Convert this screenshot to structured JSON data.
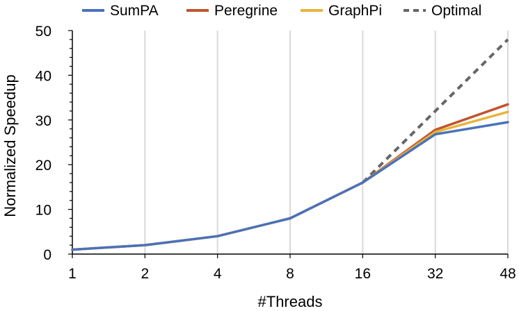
{
  "chart_data": {
    "type": "line",
    "xlabel": "#Threads",
    "ylabel": "Normalized Speedup",
    "categories": [
      "1",
      "2",
      "4",
      "8",
      "16",
      "32",
      "48"
    ],
    "ylim": [
      0,
      50
    ],
    "yticks": [
      0,
      10,
      20,
      30,
      40,
      50
    ],
    "grid": "vertical",
    "legend_position": "top",
    "series": [
      {
        "name": "SumPA",
        "color": "#4a72b8",
        "dash": "solid",
        "values": [
          1,
          2,
          4,
          8,
          16,
          26.8,
          29.5
        ]
      },
      {
        "name": "Peregrine",
        "color": "#c05430",
        "dash": "solid",
        "values": [
          1,
          2,
          4,
          8,
          16,
          27.8,
          33.5
        ]
      },
      {
        "name": "GraphPi",
        "color": "#e8b43a",
        "dash": "solid",
        "values": [
          1,
          2,
          4,
          8,
          16,
          27.3,
          31.8
        ]
      },
      {
        "name": "Optimal",
        "color": "#666666",
        "dash": "dashed",
        "values": [
          null,
          null,
          null,
          null,
          16,
          32,
          48
        ]
      }
    ]
  }
}
